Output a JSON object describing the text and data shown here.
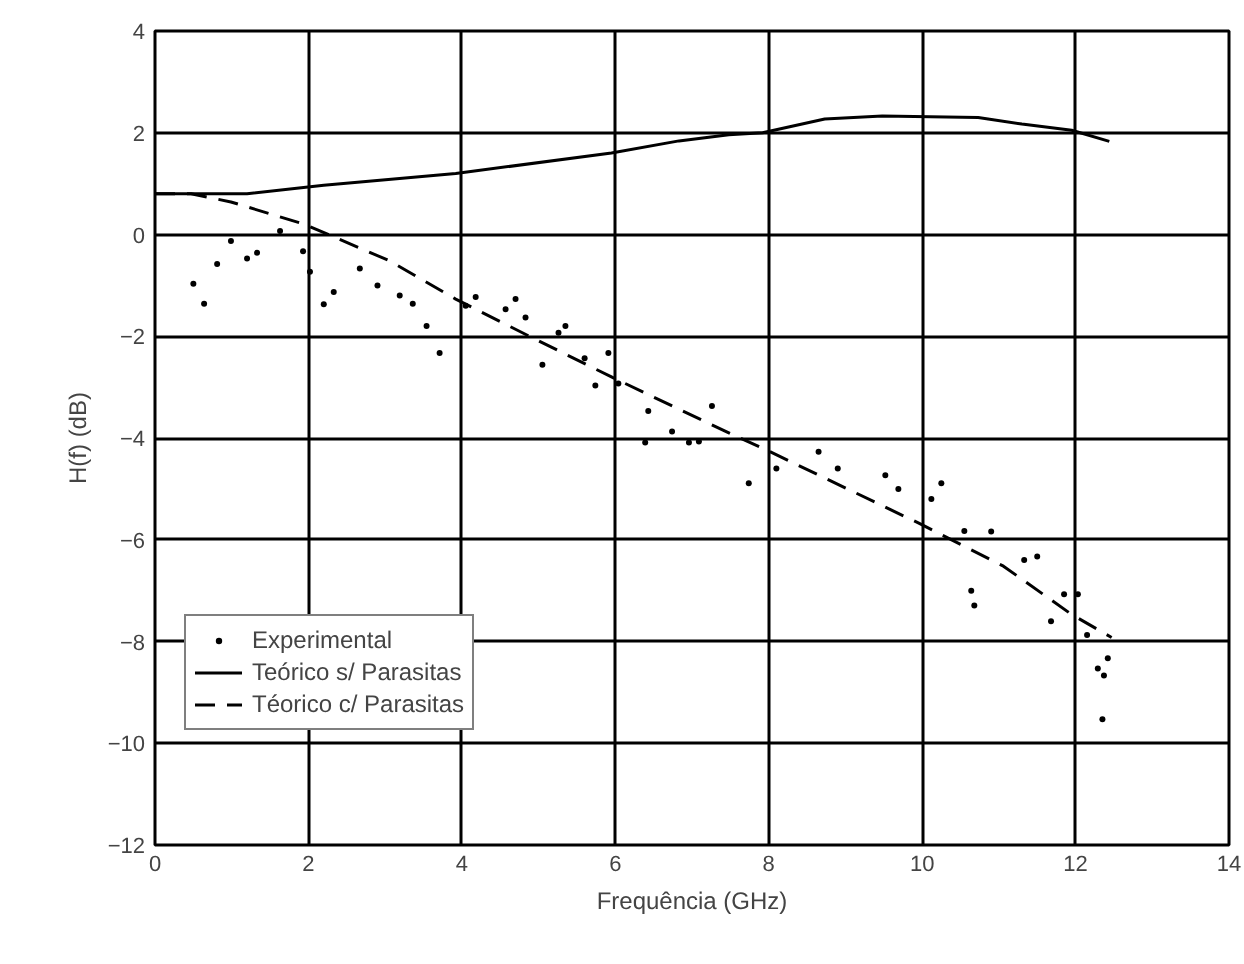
{
  "chart_data": {
    "type": "line",
    "xlabel": "Frequência (GHz)",
    "ylabel": "H(f) (dB)",
    "xlim": [
      0,
      14
    ],
    "ylim": [
      -12,
      4
    ],
    "xticks": [
      0,
      2,
      4,
      6,
      8,
      10,
      12,
      14
    ],
    "yticks": [
      -12,
      -10,
      -8,
      -6,
      -4,
      -2,
      0,
      2,
      4
    ],
    "grid": true,
    "legend": "bottom left",
    "series": [
      {
        "name": "Experimental",
        "type": "scatter",
        "marker": "circle",
        "color": "#000000",
        "x": [
          0.5,
          0.64,
          0.81,
          0.99,
          1.2,
          1.33,
          1.63,
          1.93,
          2.02,
          2.2,
          2.33,
          2.67,
          2.9,
          3.19,
          3.36,
          3.54,
          3.71,
          4.05,
          4.18,
          4.57,
          4.7,
          4.83,
          5.05,
          5.26,
          5.35,
          5.6,
          5.74,
          5.91,
          6.04,
          6.39,
          6.43,
          6.74,
          6.96,
          7.09,
          7.26,
          7.74,
          8.1,
          8.65,
          8.9,
          9.52,
          9.69,
          10.12,
          10.25,
          10.55,
          10.64,
          10.68,
          10.9,
          11.33,
          11.5,
          11.68,
          11.85,
          12.03,
          12.15,
          12.29,
          12.35,
          12.37,
          12.42
        ],
        "values": [
          -0.97,
          -1.36,
          -0.58,
          -0.13,
          -0.47,
          -0.36,
          0.07,
          -0.33,
          -0.73,
          -1.37,
          -1.13,
          -0.67,
          -1.0,
          -1.2,
          -1.36,
          -1.8,
          -2.33,
          -1.4,
          -1.23,
          -1.47,
          -1.27,
          -1.63,
          -2.56,
          -1.93,
          -1.8,
          -2.43,
          -2.97,
          -2.33,
          -2.93,
          -4.09,
          -3.47,
          -3.87,
          -4.09,
          -4.07,
          -3.37,
          -4.89,
          -4.6,
          -4.27,
          -4.6,
          -4.73,
          -5.0,
          -5.2,
          -4.89,
          -5.83,
          -7.0,
          -7.29,
          -5.84,
          -6.4,
          -6.33,
          -7.6,
          -7.07,
          -7.07,
          -7.87,
          -8.53,
          -9.53,
          -8.67,
          -8.33
        ]
      },
      {
        "name": "Teórico s/ Parasitas",
        "line_style": "solid",
        "color": "#000000",
        "x": [
          0,
          0.47,
          1.2,
          2.2,
          3.92,
          5.95,
          6.83,
          7.48,
          7.92,
          8.73,
          9.48,
          10.73,
          11.3,
          11.95,
          12.44
        ],
        "values": [
          0.8,
          0.8,
          0.8,
          0.97,
          1.2,
          1.6,
          1.84,
          1.96,
          2.0,
          2.27,
          2.33,
          2.3,
          2.17,
          2.05,
          1.83
        ]
      },
      {
        "name": "Téorico c/ Parasitas",
        "line_style": "dashed",
        "color": "#000000",
        "x": [
          0,
          0.47,
          0.99,
          1.95,
          3.06,
          3.92,
          4.88,
          5.95,
          7.48,
          7.92,
          9.95,
          11.06,
          11.95,
          12.47
        ],
        "values": [
          0.8,
          0.8,
          0.64,
          0.2,
          -0.52,
          -1.27,
          -2.0,
          -2.8,
          -3.9,
          -4.2,
          -5.67,
          -6.52,
          -7.47,
          -7.92
        ]
      }
    ]
  }
}
